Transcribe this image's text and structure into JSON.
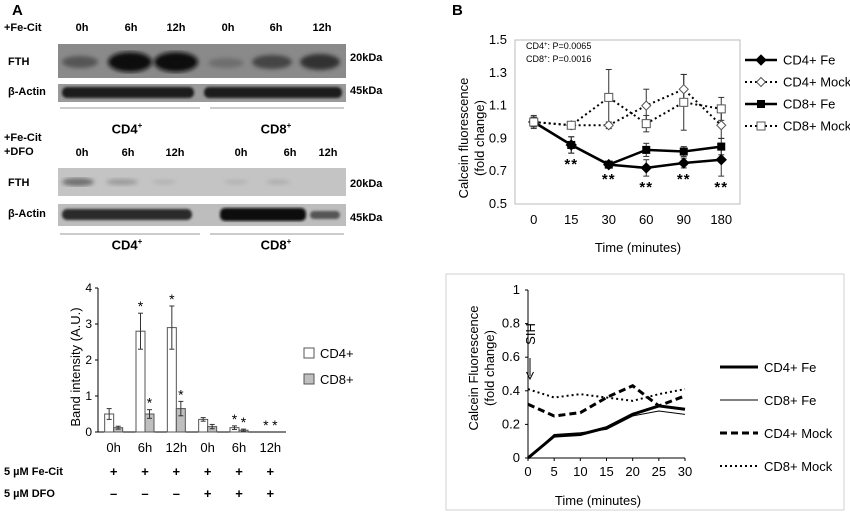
{
  "panel_a": {
    "letter": "A",
    "blot1": {
      "treatment": "+Fe-Cit",
      "timepoints": [
        "0h",
        "6h",
        "12h",
        "0h",
        "6h",
        "12h"
      ],
      "row1_label": "FTH",
      "row1_mw": "20kDa",
      "row2_label": "β-Actin",
      "row2_mw": "45kDa",
      "group1": "CD4",
      "group2": "CD8",
      "group_sup": "+"
    },
    "blot2": {
      "treatment_line1": "+Fe-Cit",
      "treatment_line2": "+DFO",
      "timepoints": [
        "0h",
        "6h",
        "12h",
        "0h",
        "6h",
        "12h"
      ],
      "row1_label": "FTH",
      "row1_mw": "20kDa",
      "row2_label": "β-Actin",
      "row2_mw": "45kDa",
      "group1": "CD4",
      "group2": "CD8",
      "group_sup": "+"
    },
    "table": {
      "row1_label": "5 µM Fe-Cit",
      "row1_signs": [
        "+",
        "+",
        "+",
        "+",
        "+",
        "+"
      ],
      "row2_label": "5 µM DFO",
      "row2_signs": [
        "–",
        "–",
        "–",
        "+",
        "+",
        "+"
      ]
    }
  },
  "panel_b": {
    "letter": "B"
  },
  "chart_data": [
    {
      "id": "band-intensity",
      "type": "bar",
      "ylabel": "Band intensity (A.U.)",
      "ylim": [
        0,
        4
      ],
      "yticks": [
        "0",
        "1",
        "2",
        "3",
        "4"
      ],
      "categories": [
        "0h",
        "6h",
        "12h",
        "0h",
        "6h",
        "12h"
      ],
      "series": [
        {
          "name": "CD4+",
          "color": "#ffffff",
          "values": [
            0.5,
            2.8,
            2.9,
            0.35,
            0.12,
            0.0
          ],
          "errors": [
            0.15,
            0.5,
            0.6,
            0.05,
            0.05,
            0.0
          ]
        },
        {
          "name": "CD8+",
          "color": "#bfbfbf",
          "values": [
            0.12,
            0.5,
            0.65,
            0.15,
            0.05,
            0.0
          ],
          "errors": [
            0.04,
            0.12,
            0.2,
            0.06,
            0.03,
            0.0
          ]
        }
      ],
      "annotations": [
        {
          "category": 1,
          "series": 0,
          "text": "*"
        },
        {
          "category": 1,
          "series": 1,
          "text": "*"
        },
        {
          "category": 2,
          "series": 0,
          "text": "*"
        },
        {
          "category": 2,
          "series": 1,
          "text": "*"
        },
        {
          "category": 4,
          "series": 0,
          "text": "*"
        },
        {
          "category": 4,
          "series": 1,
          "text": "*"
        },
        {
          "category": 5,
          "series": 0,
          "text": "*"
        },
        {
          "category": 5,
          "series": 1,
          "text": "*"
        }
      ],
      "legend": [
        "CD4+",
        "CD8+"
      ]
    },
    {
      "id": "calcein-top",
      "type": "line",
      "ylabel_line1": "Calcein fluorescence",
      "ylabel_line2": "(fold change)",
      "xlabel": "Time (minutes)",
      "categories": [
        "0",
        "15",
        "30",
        "60",
        "90",
        "180"
      ],
      "ylim": [
        0.5,
        1.5
      ],
      "yticks": [
        "0.5",
        "0.7",
        "0.9",
        "1.1",
        "1.3",
        "1.5"
      ],
      "stats_line1_prefix": "CD4",
      "stats_line1_value": ": P=0.0065",
      "stats_line2_prefix": "CD8",
      "stats_sup": "+",
      "stats_line2_value": ": P=0.0016",
      "significance": [
        "",
        "**",
        "**",
        "**",
        "**",
        "**"
      ],
      "series": [
        {
          "name": "CD4+ Fe",
          "values": [
            1.0,
            0.86,
            0.74,
            0.72,
            0.75,
            0.77
          ],
          "errors": [
            0.03,
            0.05,
            0.01,
            0.05,
            0.03,
            0.1
          ]
        },
        {
          "name": "CD4+ Mock",
          "values": [
            1.0,
            0.98,
            0.98,
            1.1,
            1.2,
            0.98
          ],
          "errors": [
            0.03,
            0.02,
            0.02,
            0.1,
            0.09,
            0.08
          ]
        },
        {
          "name": "CD8+ Fe",
          "values": [
            1.0,
            0.86,
            0.74,
            0.83,
            0.82,
            0.85
          ],
          "errors": [
            0.03,
            0.05,
            0.02,
            0.04,
            0.03,
            0.05
          ]
        },
        {
          "name": "CD8+ Mock",
          "values": [
            1.0,
            0.98,
            1.15,
            0.99,
            1.12,
            1.08
          ],
          "errors": [
            0.04,
            0.02,
            0.17,
            0.05,
            0.17,
            0.07
          ]
        }
      ]
    },
    {
      "id": "calcein-bottom",
      "type": "line",
      "ylabel_line1": "Calcein Fluorescence",
      "ylabel_line2": "(fold change)",
      "xlabel": "Time (minutes)",
      "x": [
        0,
        5,
        10,
        15,
        20,
        25,
        30
      ],
      "xticks": [
        "0",
        "5",
        "10",
        "15",
        "20",
        "25",
        "30"
      ],
      "ylim": [
        0,
        1
      ],
      "yticks": [
        "0",
        "0.2",
        "0.4",
        "0.6",
        "0.8",
        "1"
      ],
      "annotation": "SIH",
      "series": [
        {
          "name": "CD4+ Fe",
          "values": [
            0.0,
            0.13,
            0.14,
            0.18,
            0.26,
            0.31,
            0.29
          ]
        },
        {
          "name": "CD8+ Fe",
          "values": [
            0.0,
            0.14,
            0.15,
            0.17,
            0.25,
            0.28,
            0.26
          ]
        },
        {
          "name": "CD4+ Mock",
          "values": [
            0.32,
            0.25,
            0.27,
            0.36,
            0.43,
            0.31,
            0.37
          ]
        },
        {
          "name": "CD8+ Mock",
          "values": [
            0.41,
            0.36,
            0.38,
            0.36,
            0.34,
            0.38,
            0.41
          ]
        }
      ]
    }
  ]
}
